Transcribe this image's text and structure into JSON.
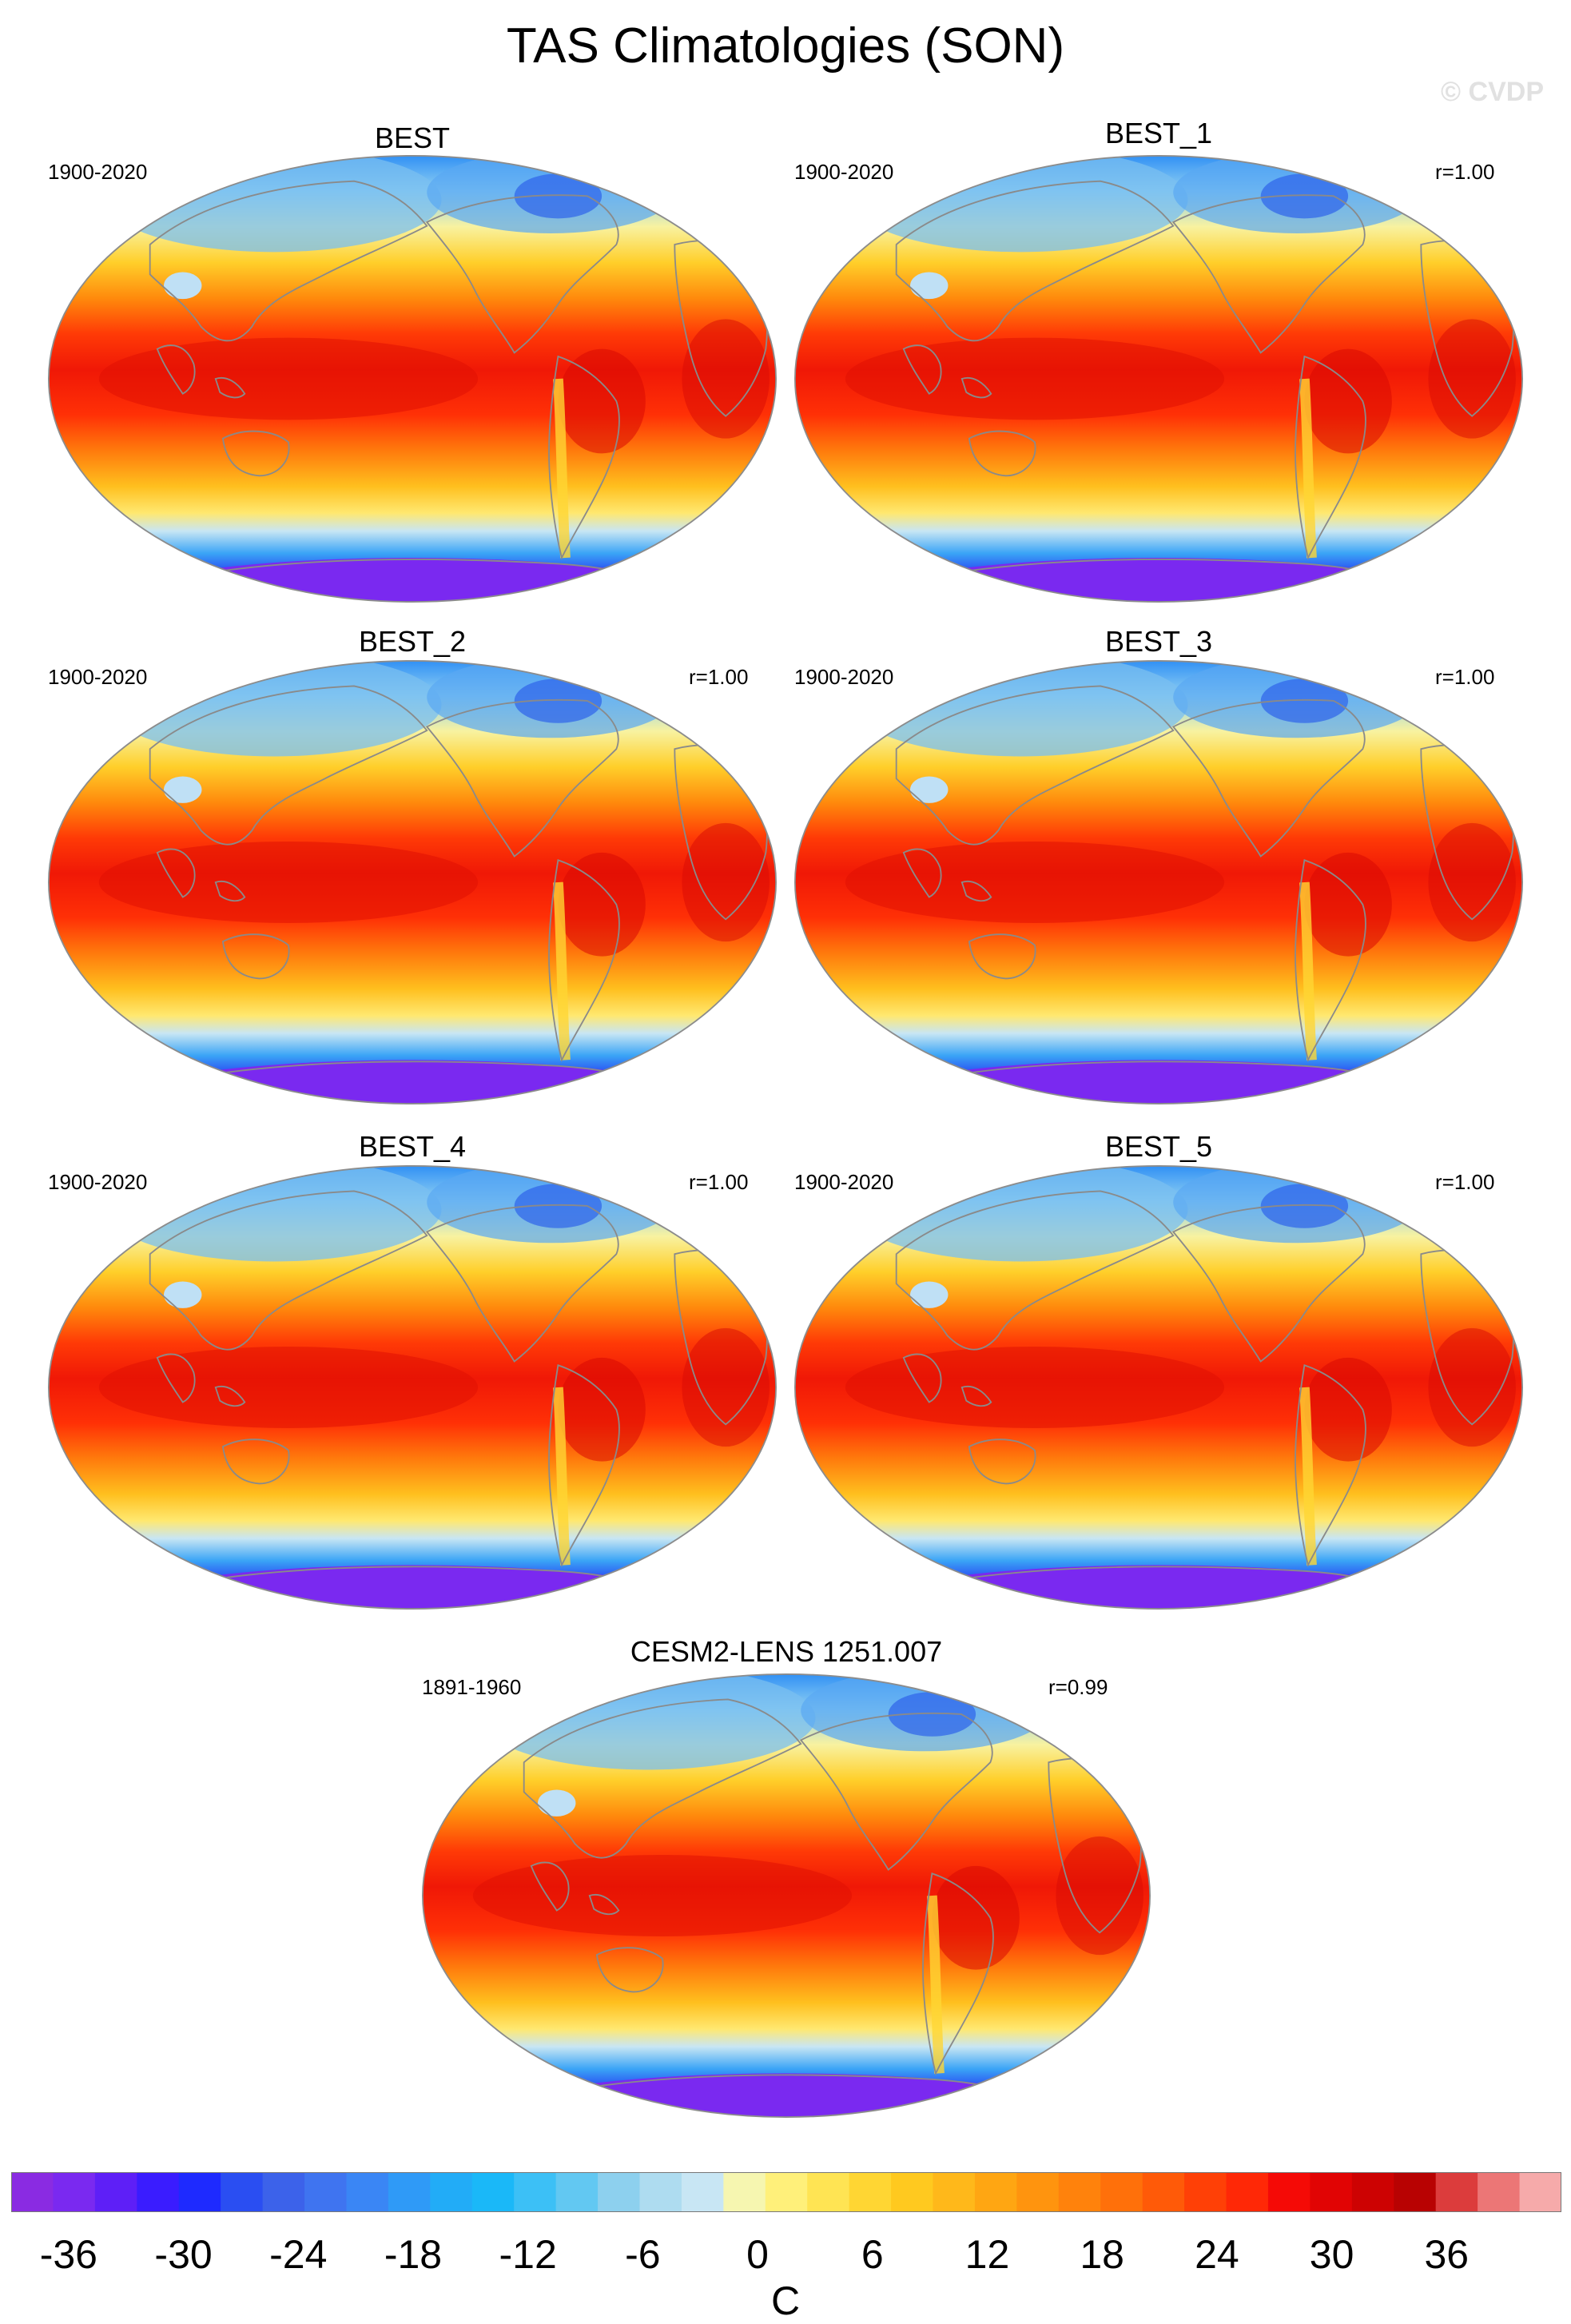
{
  "title": "TAS Climatologies (SON)",
  "watermark": "© CVDP",
  "panels": [
    {
      "title": "BEST",
      "period": "1900-2020",
      "corr": ""
    },
    {
      "title": "BEST_1",
      "period": "1900-2020",
      "corr": "r=1.00"
    },
    {
      "title": "BEST_2",
      "period": "1900-2020",
      "corr": "r=1.00"
    },
    {
      "title": "BEST_3",
      "period": "1900-2020",
      "corr": "r=1.00"
    },
    {
      "title": "BEST_4",
      "period": "1900-2020",
      "corr": "r=1.00"
    },
    {
      "title": "BEST_5",
      "period": "1900-2020",
      "corr": "r=1.00"
    },
    {
      "title": "CESM2-LENS 1251.007",
      "period": "1891-1960",
      "corr": "r=0.99"
    }
  ],
  "colorbar": {
    "units": "C",
    "tick_labels": [
      "-36",
      "-30",
      "-24",
      "-18",
      "-12",
      "-6",
      "0",
      "6",
      "12",
      "18",
      "24",
      "30",
      "36"
    ],
    "colors": [
      "#8a2be2",
      "#7a29f0",
      "#5e1ff7",
      "#3a1cff",
      "#1e2aff",
      "#2a4ef2",
      "#3c62ea",
      "#3f74f0",
      "#3a86f5",
      "#2f9af7",
      "#22acf7",
      "#1ab8f8",
      "#3cc0f6",
      "#62c8f2",
      "#8dd0ee",
      "#aedcf0",
      "#c8e6f4",
      "#f6f6b0",
      "#fff07a",
      "#ffe453",
      "#ffd633",
      "#ffc91f",
      "#ffb81a",
      "#ffa612",
      "#ff940e",
      "#ff820c",
      "#ff700a",
      "#ff5a08",
      "#ff4006",
      "#ff2806",
      "#f50a06",
      "#e10404",
      "#cd0202",
      "#b80202",
      "#dc3c3c",
      "#ec7676",
      "#f6aaaa"
    ],
    "tick_values": [
      -36,
      -30,
      -24,
      -18,
      -12,
      -6,
      0,
      6,
      12,
      18,
      24,
      30,
      36
    ],
    "value_min": -39,
    "value_max": 42
  }
}
